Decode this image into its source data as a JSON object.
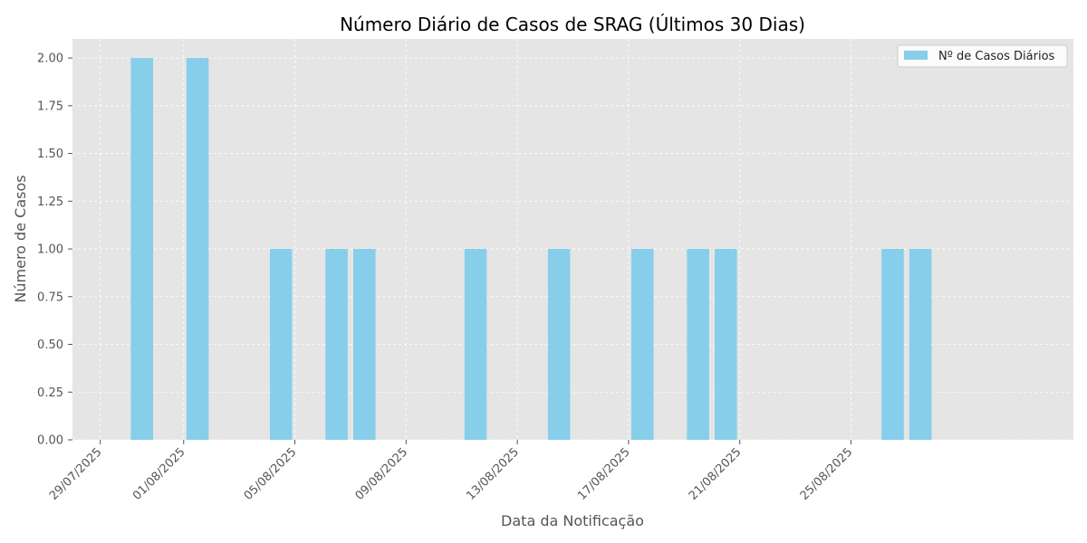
{
  "chart_data": {
    "type": "bar",
    "title": "Número Diário de Casos de SRAG (Últimos 30 Dias)",
    "xlabel": "Data da Notificação",
    "ylabel": "Número de Casos",
    "x_axis_type": "date",
    "xlim": [
      "2025-07-28",
      "2025-09-02"
    ],
    "ylim": [
      0,
      2.1
    ],
    "x_ticks": [
      {
        "date": "2025-07-29",
        "label": "29/07/2025"
      },
      {
        "date": "2025-08-01",
        "label": "01/08/2025"
      },
      {
        "date": "2025-08-05",
        "label": "05/08/2025"
      },
      {
        "date": "2025-08-09",
        "label": "09/08/2025"
      },
      {
        "date": "2025-08-13",
        "label": "13/08/2025"
      },
      {
        "date": "2025-08-17",
        "label": "17/08/2025"
      },
      {
        "date": "2025-08-21",
        "label": "21/08/2025"
      },
      {
        "date": "2025-08-25",
        "label": "25/08/2025"
      }
    ],
    "y_ticks": [
      "0.00",
      "0.25",
      "0.50",
      "0.75",
      "1.00",
      "1.25",
      "1.50",
      "1.75",
      "2.00"
    ],
    "series": [
      {
        "name": "Nº de Casos Diários",
        "color": "#87CEEB",
        "points": [
          {
            "x": "2025-07-30",
            "y": 2
          },
          {
            "x": "2025-08-01",
            "y": 2
          },
          {
            "x": "2025-08-04",
            "y": 1
          },
          {
            "x": "2025-08-06",
            "y": 1
          },
          {
            "x": "2025-08-07",
            "y": 1
          },
          {
            "x": "2025-08-11",
            "y": 1
          },
          {
            "x": "2025-08-14",
            "y": 1
          },
          {
            "x": "2025-08-17",
            "y": 1
          },
          {
            "x": "2025-08-19",
            "y": 1
          },
          {
            "x": "2025-08-20",
            "y": 1
          },
          {
            "x": "2025-08-26",
            "y": 1
          },
          {
            "x": "2025-08-27",
            "y": 1
          }
        ]
      }
    ],
    "grid": true,
    "legend_position": "top-right",
    "background_color": "#E5E5E5"
  }
}
